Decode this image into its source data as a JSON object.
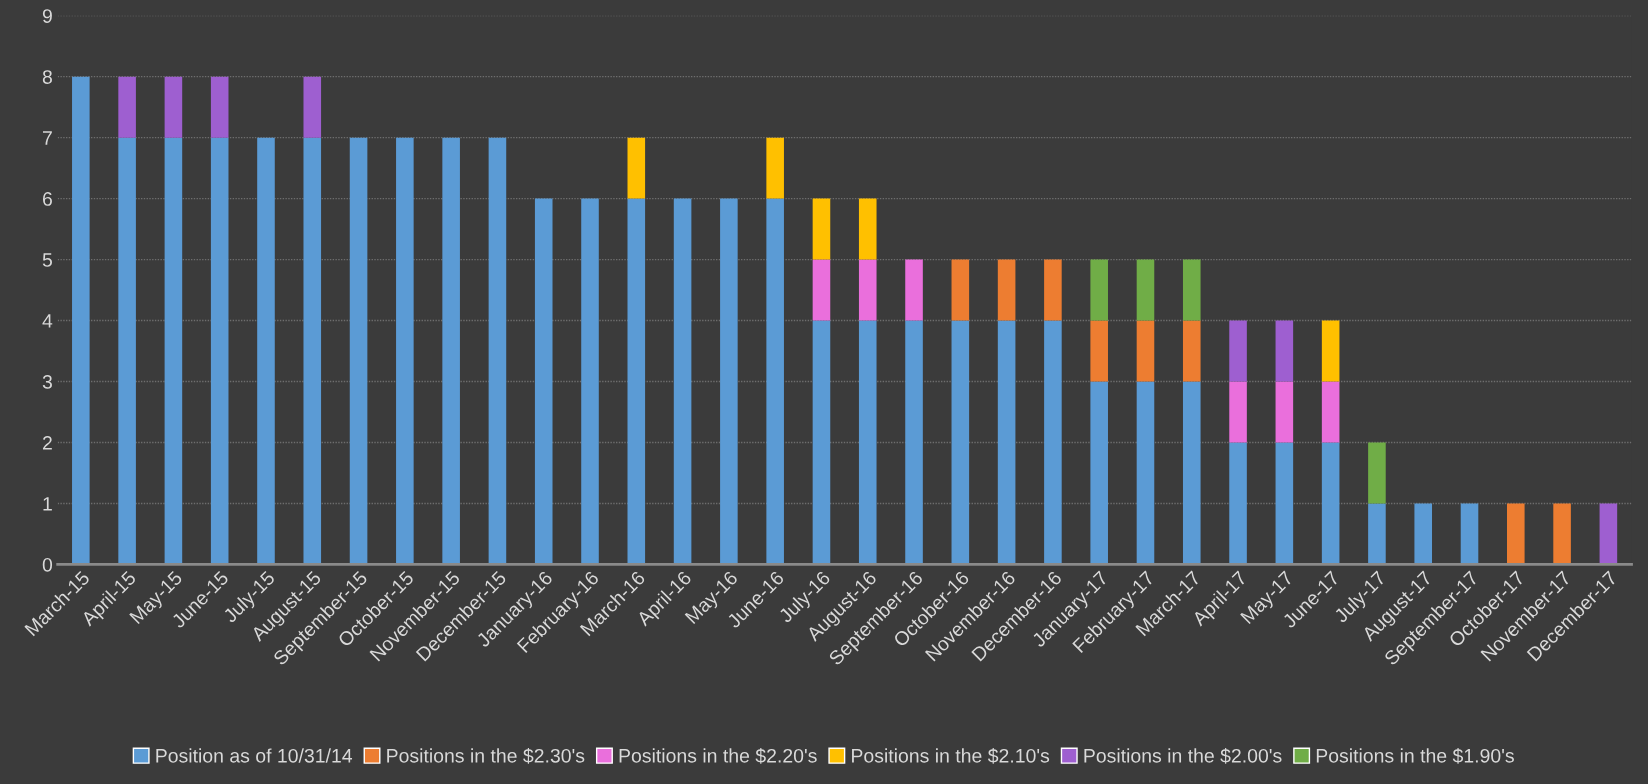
{
  "chart_data": {
    "type": "bar",
    "stacked": true,
    "categories": [
      "March-15",
      "April-15",
      "May-15",
      "June-15",
      "July-15",
      "August-15",
      "September-15",
      "October-15",
      "November-15",
      "December-15",
      "January-16",
      "February-16",
      "March-16",
      "April-16",
      "May-16",
      "June-16",
      "July-16",
      "August-16",
      "September-16",
      "October-16",
      "November-16",
      "December-16",
      "January-17",
      "February-17",
      "March-17",
      "April-17",
      "May-17",
      "June-17",
      "July-17",
      "August-17",
      "September-17",
      "October-17",
      "November-17",
      "December-17"
    ],
    "series": [
      {
        "name": "Position as of 10/31/14",
        "color": "#5b9bd5",
        "values": [
          8,
          7,
          7,
          7,
          7,
          7,
          7,
          7,
          7,
          7,
          6,
          6,
          6,
          6,
          6,
          6,
          4,
          4,
          4,
          4,
          4,
          4,
          3,
          3,
          3,
          2,
          2,
          2,
          1,
          1,
          1,
          null,
          null,
          null
        ]
      },
      {
        "name": "Positions in the $2.30's",
        "color": "#ed7d31",
        "values": [
          null,
          null,
          null,
          null,
          null,
          null,
          null,
          null,
          null,
          null,
          null,
          null,
          null,
          null,
          null,
          null,
          null,
          null,
          null,
          1,
          1,
          1,
          1,
          1,
          1,
          null,
          null,
          null,
          null,
          null,
          null,
          1,
          1,
          null
        ]
      },
      {
        "name": "Positions in the $2.20's",
        "color": "#ea6fdc",
        "values": [
          null,
          null,
          null,
          null,
          null,
          null,
          null,
          null,
          null,
          null,
          null,
          null,
          null,
          null,
          null,
          null,
          1,
          1,
          1,
          null,
          null,
          null,
          null,
          null,
          null,
          1,
          1,
          1,
          null,
          null,
          null,
          null,
          null,
          null
        ]
      },
      {
        "name": "Positions in the $2.10's",
        "color": "#ffc000",
        "values": [
          null,
          null,
          null,
          null,
          null,
          null,
          null,
          null,
          null,
          null,
          null,
          null,
          1,
          null,
          null,
          1,
          1,
          1,
          null,
          null,
          null,
          null,
          null,
          null,
          null,
          null,
          null,
          1,
          null,
          null,
          null,
          null,
          null,
          null
        ]
      },
      {
        "name": "Positions in the $2.00's",
        "color": "#9e5fd0",
        "values": [
          null,
          1,
          1,
          1,
          null,
          1,
          null,
          null,
          null,
          null,
          null,
          null,
          null,
          null,
          null,
          null,
          null,
          null,
          null,
          null,
          null,
          null,
          null,
          null,
          null,
          1,
          1,
          null,
          null,
          null,
          null,
          null,
          null,
          1
        ]
      },
      {
        "name": "Positions in the $1.90's",
        "color": "#70ad47",
        "values": [
          null,
          null,
          null,
          null,
          null,
          null,
          null,
          null,
          null,
          null,
          null,
          null,
          null,
          null,
          null,
          null,
          null,
          null,
          null,
          null,
          null,
          null,
          1,
          1,
          1,
          null,
          null,
          null,
          1,
          null,
          null,
          null,
          null,
          null
        ]
      }
    ],
    "ylim": [
      0,
      9
    ],
    "yticks": [
      0,
      1,
      2,
      3,
      4,
      5,
      6,
      7,
      8,
      9
    ],
    "grid": "y",
    "legend": "bottom"
  }
}
